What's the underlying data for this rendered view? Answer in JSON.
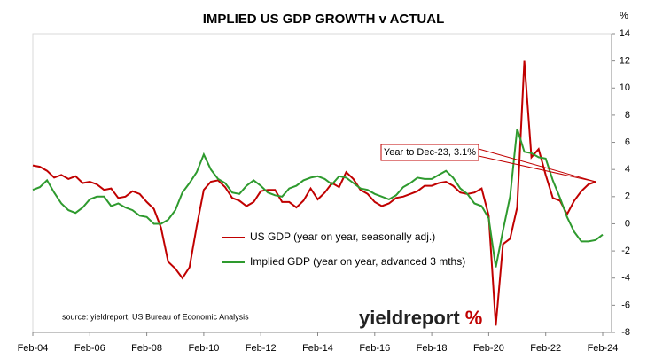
{
  "chart_data": {
    "type": "line",
    "title": "IMPLIED US GDP GROWTH v ACTUAL",
    "y_unit": "%",
    "categories": [
      "Feb-04",
      null,
      null,
      null,
      null,
      null,
      null,
      null,
      "Feb-06",
      null,
      null,
      null,
      null,
      null,
      null,
      null,
      "Feb-08",
      null,
      null,
      null,
      null,
      null,
      null,
      null,
      "Feb-10",
      null,
      null,
      null,
      null,
      null,
      null,
      null,
      "Feb-12",
      null,
      null,
      null,
      null,
      null,
      null,
      null,
      "Feb-14",
      null,
      null,
      null,
      null,
      null,
      null,
      null,
      "Feb-16",
      null,
      null,
      null,
      null,
      null,
      null,
      null,
      "Feb-18",
      null,
      null,
      null,
      null,
      null,
      null,
      null,
      "Feb-20",
      null,
      null,
      null,
      null,
      null,
      null,
      null,
      "Feb-22",
      null,
      null,
      null,
      null,
      null,
      null,
      null,
      "Feb-24"
    ],
    "series": [
      {
        "name": "US GDP (year on year, seasonally adj.)",
        "color": "#c00000",
        "values": [
          4.3,
          4.2,
          3.9,
          3.4,
          3.6,
          3.3,
          3.5,
          3.0,
          3.1,
          2.9,
          2.5,
          2.6,
          1.9,
          2.0,
          2.4,
          2.2,
          1.6,
          1.1,
          -0.3,
          -2.8,
          -3.3,
          -4.0,
          -3.2,
          -0.2,
          2.5,
          3.1,
          3.2,
          2.7,
          1.9,
          1.7,
          1.3,
          1.6,
          2.4,
          2.5,
          2.5,
          1.6,
          1.6,
          1.2,
          1.7,
          2.6,
          1.8,
          2.3,
          3.0,
          2.7,
          3.8,
          3.3,
          2.5,
          2.2,
          1.6,
          1.3,
          1.5,
          1.9,
          2.0,
          2.2,
          2.4,
          2.8,
          2.8,
          3.0,
          3.1,
          2.8,
          2.3,
          2.2,
          2.3,
          2.6,
          0.6,
          -7.5,
          -1.5,
          -1.1,
          1.2,
          12.0,
          4.9,
          5.5,
          3.6,
          1.9,
          1.7,
          0.7,
          1.7,
          2.4,
          2.9,
          3.1,
          null
        ]
      },
      {
        "name": "Implied GDP (year on year, advanced 3 mths)",
        "color": "#2e9a2e",
        "values": [
          2.5,
          2.7,
          3.2,
          2.3,
          1.5,
          1.0,
          0.8,
          1.2,
          1.8,
          2.0,
          2.0,
          1.3,
          1.5,
          1.2,
          1.0,
          0.6,
          0.5,
          0.0,
          0.0,
          0.3,
          1.0,
          2.3,
          3.0,
          3.8,
          5.1,
          4.0,
          3.3,
          3.0,
          2.3,
          2.2,
          2.8,
          3.2,
          2.8,
          2.3,
          2.1,
          2.0,
          2.6,
          2.8,
          3.2,
          3.4,
          3.5,
          3.3,
          2.9,
          3.5,
          3.4,
          3.0,
          2.6,
          2.5,
          2.2,
          2.0,
          1.8,
          2.1,
          2.7,
          3.0,
          3.4,
          3.3,
          3.3,
          3.6,
          3.9,
          3.4,
          2.6,
          2.2,
          1.5,
          1.3,
          0.4,
          -3.2,
          -0.5,
          2.0,
          7.0,
          5.3,
          5.2,
          4.9,
          4.8,
          3.2,
          1.9,
          0.5,
          -0.6,
          -1.3,
          -1.3,
          -1.2,
          -0.8
        ]
      }
    ],
    "ylim": [
      -8,
      14
    ],
    "yticks": [
      -8,
      -6,
      -4,
      -2,
      0,
      2,
      4,
      6,
      8,
      10,
      12,
      14
    ],
    "annotation": "Year to Dec-23, 3.1%",
    "source": "source: yieldreport, US Bureau of Economic Analysis",
    "logo_text": "yieldreport",
    "logo_symbol": "%"
  }
}
